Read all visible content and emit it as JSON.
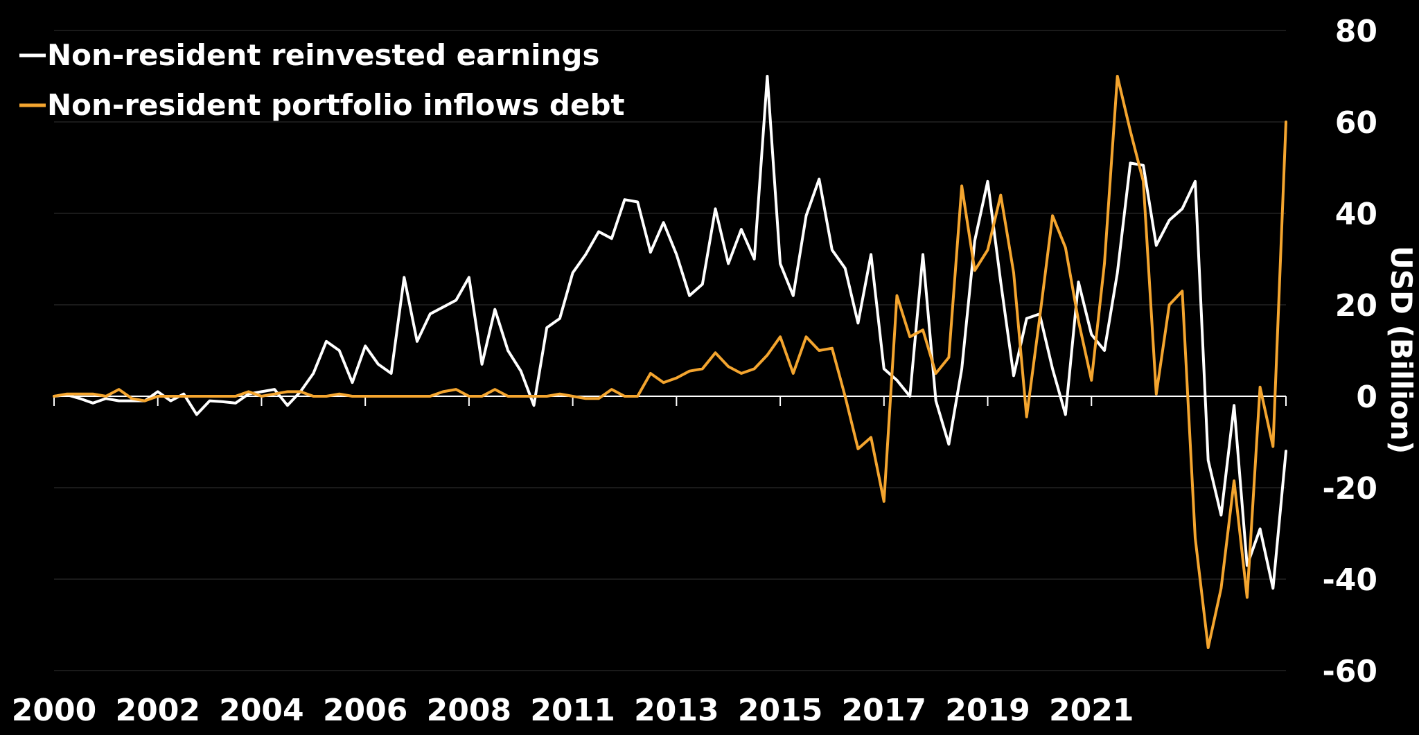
{
  "colors": {
    "background": "#000000",
    "text": "#ffffff",
    "grid": "#333333"
  },
  "legend": [
    {
      "label": "Non-resident reinvested earnings",
      "color": "#ffffff"
    },
    {
      "label": "Non-resident portfolio inflows debt",
      "color": "#f4a52f"
    }
  ],
  "chart_data": {
    "type": "line",
    "title": "",
    "xlabel": "",
    "ylabel": "USD (Billion)",
    "x_unit": "quarter",
    "x_range": [
      "2000-Q1",
      "2023-Q4"
    ],
    "ylim": [
      -60,
      80
    ],
    "y_ticks": [
      80,
      60,
      40,
      20,
      0,
      -20,
      -40,
      -60
    ],
    "x_tick_labels": [
      {
        "label": "2000",
        "period": "2000-Q1"
      },
      {
        "label": "2002",
        "period": "2002-Q1"
      },
      {
        "label": "2004",
        "period": "2004-Q1"
      },
      {
        "label": "2006",
        "period": "2006-Q1"
      },
      {
        "label": "2008",
        "period": "2008-Q1"
      },
      {
        "label": "2011",
        "period": "2010-Q1"
      },
      {
        "label": "2013",
        "period": "2012-Q1"
      },
      {
        "label": "2015",
        "period": "2014-Q1"
      },
      {
        "label": "2017",
        "period": "2016-Q1"
      },
      {
        "label": "2019",
        "period": "2018-Q1"
      },
      {
        "label": "2021",
        "period": "2020-Q1"
      }
    ],
    "grid": true,
    "legend_position": "top-left",
    "y_axis_position": "right",
    "series": [
      {
        "name": "Non-resident reinvested earnings",
        "color": "#ffffff",
        "values": [
          0,
          0.3,
          -0.5,
          -1.5,
          -0.5,
          -1,
          -1,
          -1,
          1,
          -1,
          0.5,
          -4,
          -1,
          -1.2,
          -1.5,
          0.5,
          1,
          1.5,
          -2,
          1,
          5,
          12,
          10,
          3,
          11,
          7,
          5,
          26,
          12,
          18,
          19.5,
          21,
          26,
          7,
          19,
          10,
          5.5,
          -2,
          15,
          17,
          27,
          31,
          36,
          34.5,
          43,
          42.5,
          31.5,
          38,
          31,
          22,
          24.5,
          41,
          29,
          36.5,
          30,
          70,
          29,
          22,
          39.5,
          47.5,
          32,
          28,
          16,
          31,
          6,
          3.5,
          0,
          31,
          -1,
          -10.5,
          6,
          34,
          47,
          25,
          4.5,
          17,
          18,
          6,
          -4,
          25,
          13.5,
          10,
          27,
          51,
          50.5,
          33,
          38.5,
          41,
          47,
          -14,
          -26,
          -2,
          -37,
          -29,
          -42,
          -12
        ]
      },
      {
        "name": "Non-resident portfolio inflows debt",
        "color": "#f4a52f",
        "values": [
          0,
          0.5,
          0.5,
          0.5,
          0,
          1.5,
          -0.5,
          -1,
          0,
          0,
          0,
          0,
          0,
          0,
          0,
          1,
          0,
          0.5,
          1,
          1,
          0,
          0,
          0.5,
          0,
          0,
          0,
          0,
          0,
          0,
          0,
          1,
          1.5,
          0,
          0,
          1.5,
          0,
          0,
          0,
          0,
          0.5,
          0,
          -0.5,
          -0.5,
          1.5,
          0,
          0,
          5,
          3,
          4,
          5.5,
          6,
          9.5,
          6.5,
          5,
          6,
          9,
          13,
          5,
          13,
          10,
          10.5,
          0,
          -11.5,
          -9,
          -23,
          22,
          13,
          14.5,
          5,
          8.5,
          46,
          27.5,
          32,
          44,
          27,
          -4.5,
          17,
          39.5,
          32.5,
          16.5,
          3.5,
          29,
          70,
          58,
          47,
          0.5,
          20,
          23,
          -31,
          -55,
          -42,
          -18.5,
          -44,
          2,
          -11,
          60
        ]
      }
    ]
  }
}
